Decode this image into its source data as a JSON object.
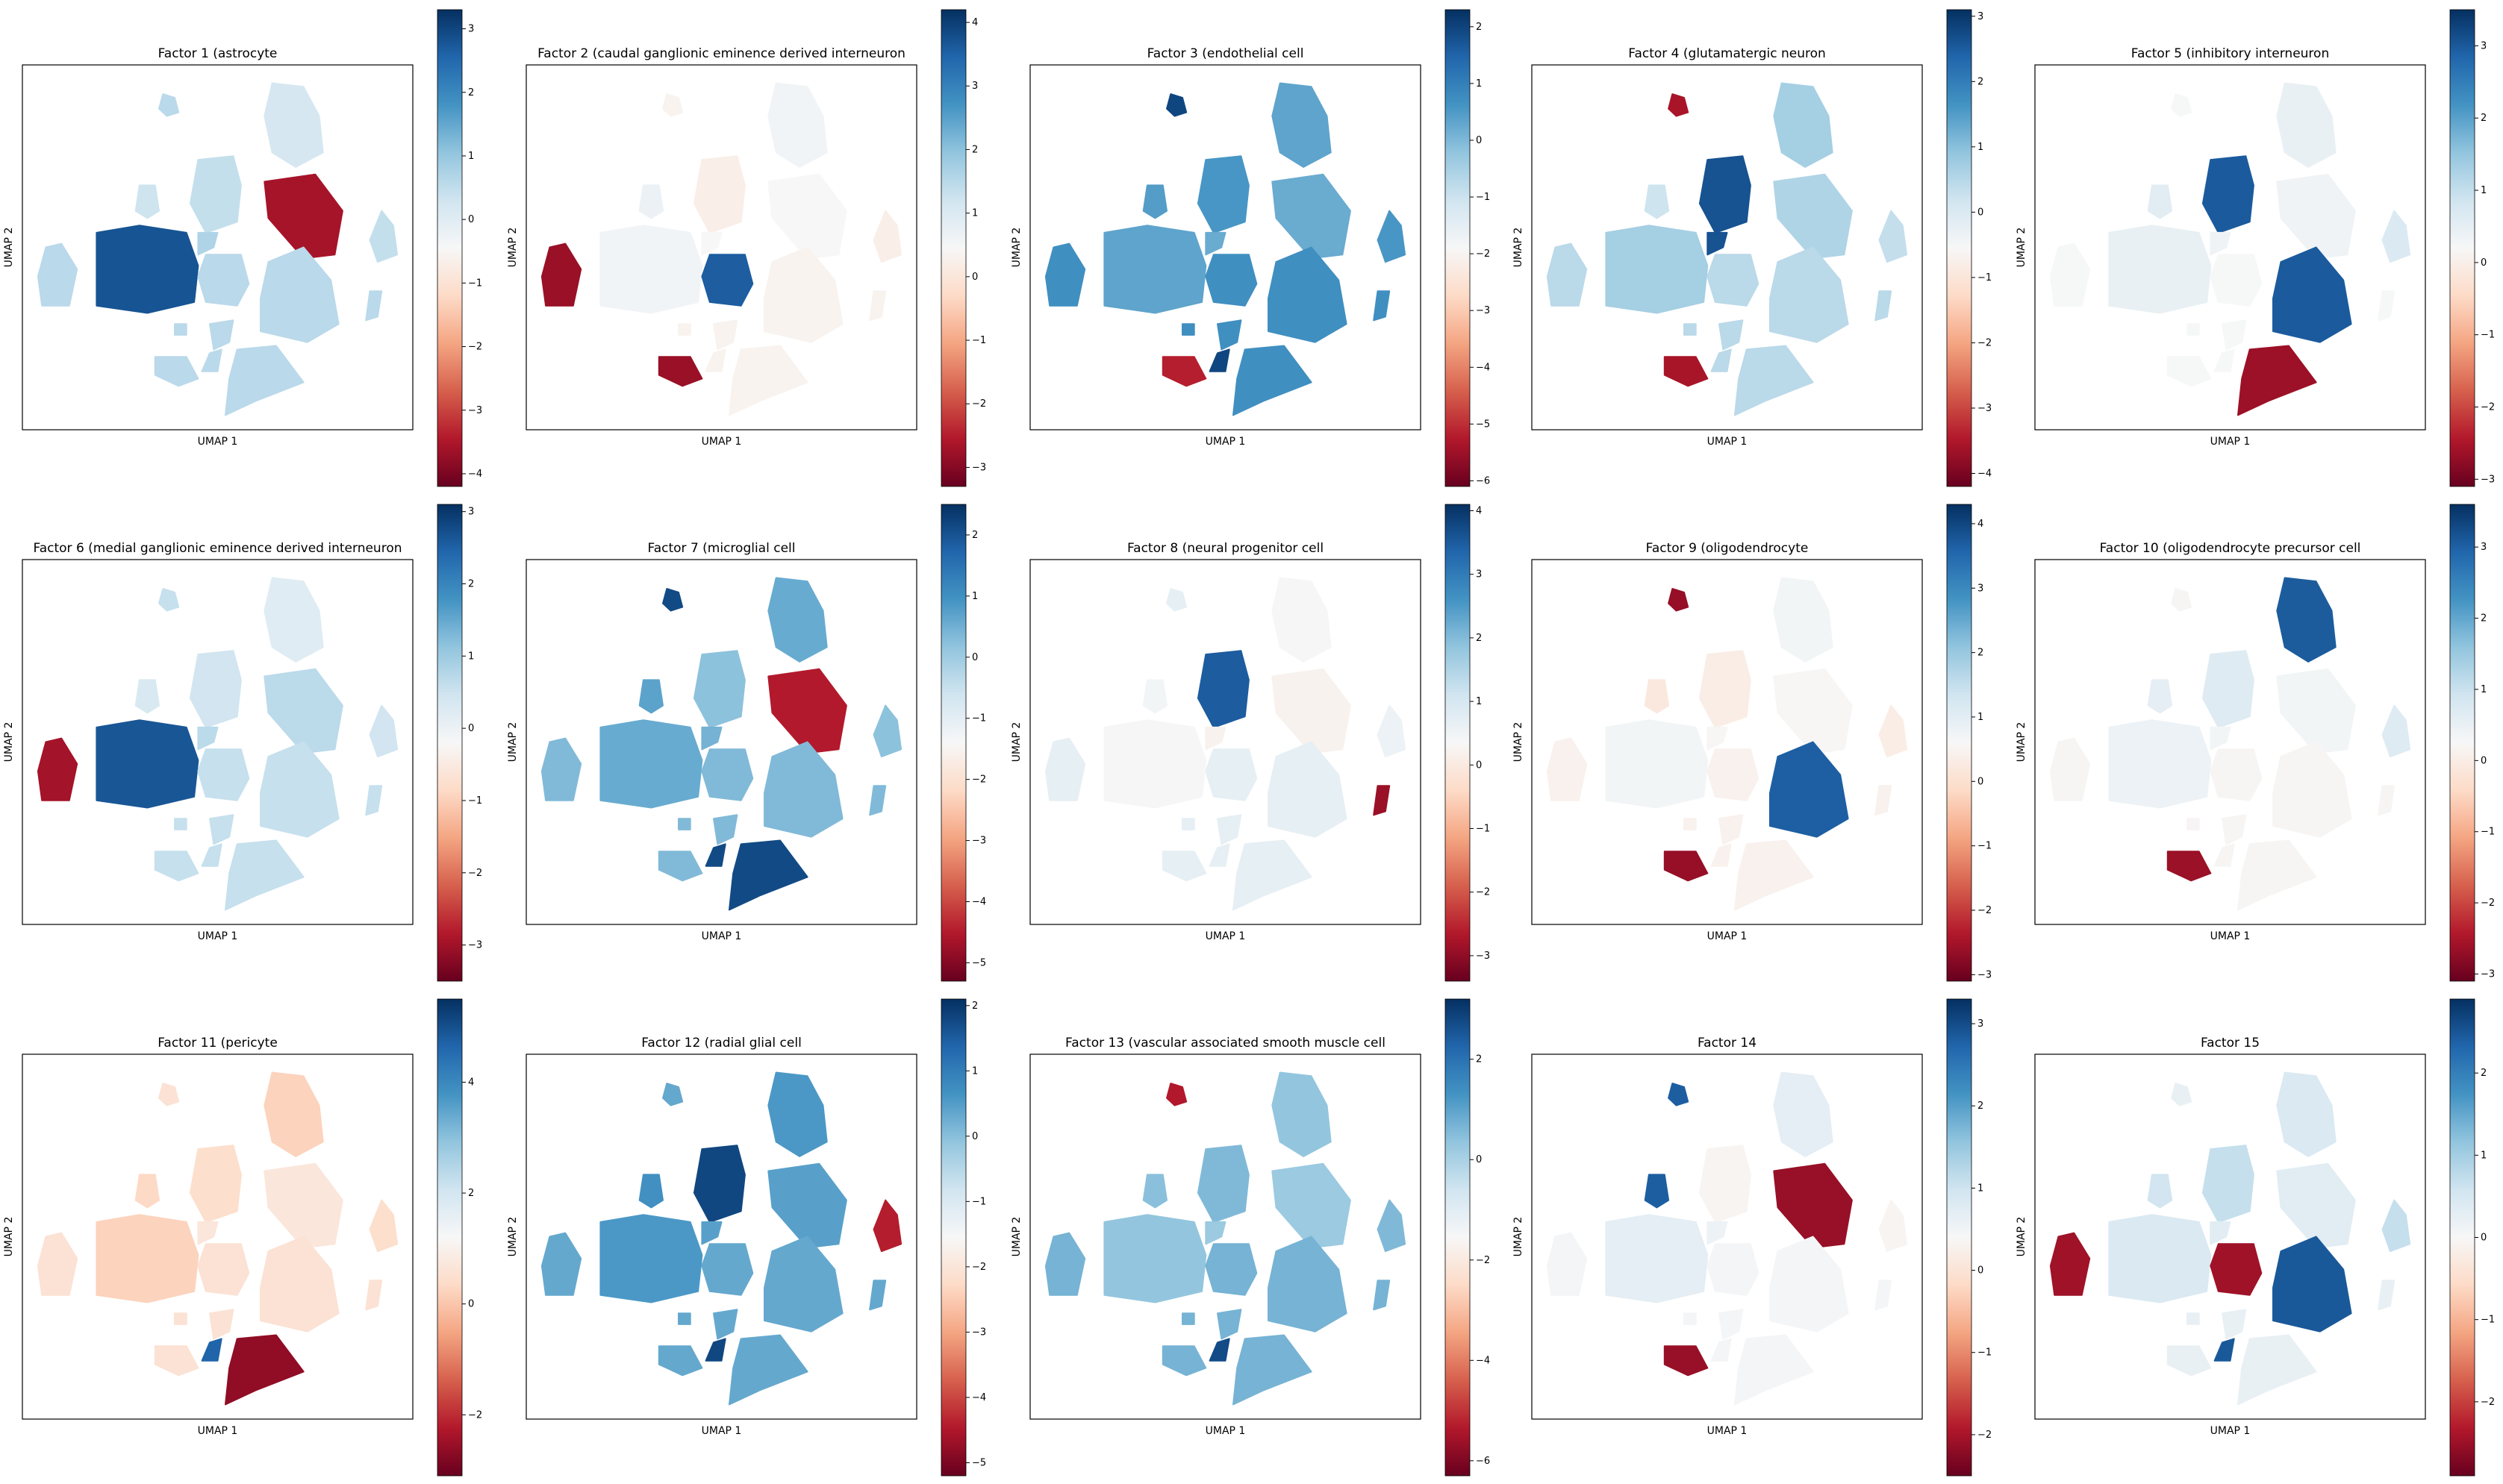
{
  "chart_data": [
    {
      "type": "scatter",
      "title": "Factor 1 (astrocyte",
      "xlabel": "UMAP 1",
      "ylabel": "UMAP 2",
      "colorbar": {
        "ticks": [
          3,
          2,
          1,
          0,
          -1,
          -2,
          -3,
          -4
        ],
        "range": [
          -4.2,
          3.3
        ]
      },
      "colormap": "RdBu",
      "high_clusters": [
        "c7"
      ],
      "low_clusters": [
        "c4"
      ]
    },
    {
      "type": "scatter",
      "title": "Factor 2 (caudal ganglionic eminence derived interneuron",
      "xlabel": "UMAP 1",
      "ylabel": "UMAP 2",
      "colorbar": {
        "ticks": [
          4,
          3,
          2,
          1,
          0,
          -1,
          -2,
          -3
        ],
        "range": [
          -3.3,
          4.2
        ]
      },
      "colormap": "RdBu",
      "high_clusters": [
        "c11"
      ],
      "low_clusters": [
        "c6",
        "c16"
      ]
    },
    {
      "type": "scatter",
      "title": "Factor 3 (endothelial cell",
      "xlabel": "UMAP 1",
      "ylabel": "UMAP 2",
      "colorbar": {
        "ticks": [
          2,
          1,
          0,
          -1,
          -2,
          -3,
          -4,
          -5,
          -6
        ],
        "range": [
          -6.1,
          2.3
        ]
      },
      "colormap": "RdBu",
      "high_clusters": [
        "c1",
        "c14"
      ],
      "low_clusters": [
        "c16"
      ]
    },
    {
      "type": "scatter",
      "title": "Factor 4 (glutamatergic neuron",
      "xlabel": "UMAP 1",
      "ylabel": "UMAP 2",
      "colorbar": {
        "ticks": [
          3,
          2,
          1,
          0,
          -1,
          -2,
          -3,
          -4
        ],
        "range": [
          -4.2,
          3.1
        ]
      },
      "colormap": "RdBu",
      "high_clusters": [
        "c3",
        "c9"
      ],
      "low_clusters": [
        "c16",
        "c1"
      ]
    },
    {
      "type": "scatter",
      "title": "Factor 5 (inhibitory interneuron",
      "xlabel": "UMAP 1",
      "ylabel": "UMAP 2",
      "colorbar": {
        "ticks": [
          3,
          2,
          1,
          0,
          -1,
          -2,
          -3
        ],
        "range": [
          -3.1,
          3.5
        ]
      },
      "colormap": "RdBu",
      "high_clusters": [
        "c3",
        "c12"
      ],
      "low_clusters": [
        "c15"
      ]
    },
    {
      "type": "scatter",
      "title": "Factor 6 (medial ganglionic eminence derived interneuron",
      "xlabel": "UMAP 1",
      "ylabel": "UMAP 2",
      "colorbar": {
        "ticks": [
          3,
          2,
          1,
          0,
          -1,
          -2,
          -3
        ],
        "range": [
          -3.5,
          3.1
        ]
      },
      "colormap": "RdBu",
      "high_clusters": [
        "c7"
      ],
      "low_clusters": [
        "c6"
      ]
    },
    {
      "type": "scatter",
      "title": "Factor 7 (microglial cell",
      "xlabel": "UMAP 1",
      "ylabel": "UMAP 2",
      "colorbar": {
        "ticks": [
          2,
          1,
          0,
          -1,
          -2,
          -3,
          -4,
          -5
        ],
        "range": [
          -5.3,
          2.5
        ]
      },
      "colormap": "RdBu",
      "high_clusters": [
        "c14",
        "c15",
        "c1"
      ],
      "low_clusters": [
        "c4"
      ]
    },
    {
      "type": "scatter",
      "title": "Factor 8 (neural progenitor cell",
      "xlabel": "UMAP 1",
      "ylabel": "UMAP 2",
      "colorbar": {
        "ticks": [
          4,
          3,
          2,
          1,
          0,
          -1,
          -2,
          -3
        ],
        "range": [
          -3.4,
          4.1
        ]
      },
      "colormap": "RdBu",
      "high_clusters": [
        "c3"
      ],
      "low_clusters": [
        "c10"
      ]
    },
    {
      "type": "scatter",
      "title": "Factor 9 (oligodendrocyte",
      "xlabel": "UMAP 1",
      "ylabel": "UMAP 2",
      "colorbar": {
        "ticks": [
          4,
          3,
          2,
          1,
          0,
          -1,
          -2,
          -3
        ],
        "range": [
          -3.1,
          4.3
        ]
      },
      "colormap": "RdBu",
      "high_clusters": [
        "c12"
      ],
      "low_clusters": [
        "c16",
        "c1"
      ]
    },
    {
      "type": "scatter",
      "title": "Factor 10 (oligodendrocyte precursor cell",
      "xlabel": "UMAP 1",
      "ylabel": "UMAP 2",
      "colorbar": {
        "ticks": [
          3,
          2,
          1,
          0,
          -1,
          -2,
          -3
        ],
        "range": [
          -3.1,
          3.6
        ]
      },
      "colormap": "RdBu",
      "high_clusters": [
        "c2"
      ],
      "low_clusters": [
        "c16"
      ]
    },
    {
      "type": "scatter",
      "title": "Factor 11 (pericyte",
      "xlabel": "UMAP 1",
      "ylabel": "UMAP 2",
      "colorbar": {
        "ticks": [
          4,
          2,
          0,
          -2
        ],
        "range": [
          -3.1,
          5.5
        ]
      },
      "colormap": "RdBu",
      "high_clusters": [
        "c14"
      ],
      "low_clusters": [
        "c15"
      ]
    },
    {
      "type": "scatter",
      "title": "Factor 12 (radial glial cell",
      "xlabel": "UMAP 1",
      "ylabel": "UMAP 2",
      "colorbar": {
        "ticks": [
          2,
          1,
          0,
          -1,
          -2,
          -3,
          -4,
          -5
        ],
        "range": [
          -5.2,
          2.1
        ]
      },
      "colormap": "RdBu",
      "high_clusters": [
        "c3",
        "c14"
      ],
      "low_clusters": [
        "c8"
      ]
    },
    {
      "type": "scatter",
      "title": "Factor 13 (vascular associated smooth muscle cell",
      "xlabel": "UMAP 1",
      "ylabel": "UMAP 2",
      "colorbar": {
        "ticks": [
          2,
          0,
          -2,
          -4,
          -6
        ],
        "range": [
          -6.3,
          3.2
        ]
      },
      "colormap": "RdBu",
      "high_clusters": [
        "c14"
      ],
      "low_clusters": [
        "c1"
      ]
    },
    {
      "type": "scatter",
      "title": "Factor 14",
      "xlabel": "UMAP 1",
      "ylabel": "UMAP 2",
      "colorbar": {
        "ticks": [
          3,
          2,
          1,
          0,
          -1,
          -2
        ],
        "range": [
          -2.5,
          3.3
        ]
      },
      "colormap": "RdBu",
      "high_clusters": [
        "c5",
        "c1"
      ],
      "low_clusters": [
        "c16",
        "c4"
      ]
    },
    {
      "type": "scatter",
      "title": "Factor 15",
      "xlabel": "UMAP 1",
      "ylabel": "UMAP 2",
      "colorbar": {
        "ticks": [
          2,
          1,
          0,
          -1,
          -2
        ],
        "range": [
          -2.9,
          2.9
        ]
      },
      "colormap": "RdBu",
      "high_clusters": [
        "c14",
        "c12"
      ],
      "low_clusters": [
        "c6",
        "c11"
      ]
    }
  ]
}
